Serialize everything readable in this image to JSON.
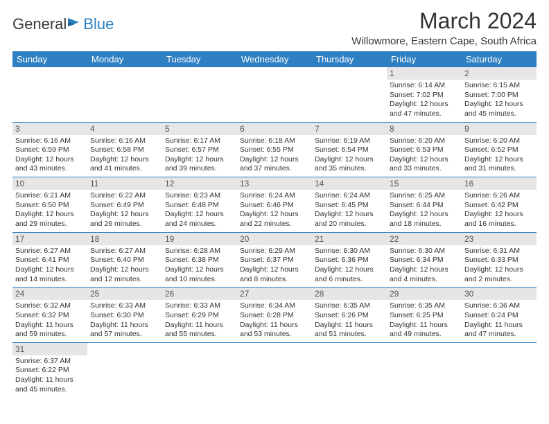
{
  "logo": {
    "text1": "General",
    "text2": "Blue"
  },
  "title": "March 2024",
  "location": "Willowmore, Eastern Cape, South Africa",
  "colors": {
    "header_bg": "#2f80c3",
    "header_fg": "#ffffff",
    "daynum_bg": "#e6e6e6",
    "rule": "#2f80c3"
  },
  "dayHeaders": [
    "Sunday",
    "Monday",
    "Tuesday",
    "Wednesday",
    "Thursday",
    "Friday",
    "Saturday"
  ],
  "weeks": [
    [
      null,
      null,
      null,
      null,
      null,
      {
        "n": "1",
        "sr": "6:14 AM",
        "ss": "7:02 PM",
        "dl": "12 hours and 47 minutes."
      },
      {
        "n": "2",
        "sr": "6:15 AM",
        "ss": "7:00 PM",
        "dl": "12 hours and 45 minutes."
      }
    ],
    [
      {
        "n": "3",
        "sr": "6:16 AM",
        "ss": "6:59 PM",
        "dl": "12 hours and 43 minutes."
      },
      {
        "n": "4",
        "sr": "6:16 AM",
        "ss": "6:58 PM",
        "dl": "12 hours and 41 minutes."
      },
      {
        "n": "5",
        "sr": "6:17 AM",
        "ss": "6:57 PM",
        "dl": "12 hours and 39 minutes."
      },
      {
        "n": "6",
        "sr": "6:18 AM",
        "ss": "6:55 PM",
        "dl": "12 hours and 37 minutes."
      },
      {
        "n": "7",
        "sr": "6:19 AM",
        "ss": "6:54 PM",
        "dl": "12 hours and 35 minutes."
      },
      {
        "n": "8",
        "sr": "6:20 AM",
        "ss": "6:53 PM",
        "dl": "12 hours and 33 minutes."
      },
      {
        "n": "9",
        "sr": "6:20 AM",
        "ss": "6:52 PM",
        "dl": "12 hours and 31 minutes."
      }
    ],
    [
      {
        "n": "10",
        "sr": "6:21 AM",
        "ss": "6:50 PM",
        "dl": "12 hours and 29 minutes."
      },
      {
        "n": "11",
        "sr": "6:22 AM",
        "ss": "6:49 PM",
        "dl": "12 hours and 26 minutes."
      },
      {
        "n": "12",
        "sr": "6:23 AM",
        "ss": "6:48 PM",
        "dl": "12 hours and 24 minutes."
      },
      {
        "n": "13",
        "sr": "6:24 AM",
        "ss": "6:46 PM",
        "dl": "12 hours and 22 minutes."
      },
      {
        "n": "14",
        "sr": "6:24 AM",
        "ss": "6:45 PM",
        "dl": "12 hours and 20 minutes."
      },
      {
        "n": "15",
        "sr": "6:25 AM",
        "ss": "6:44 PM",
        "dl": "12 hours and 18 minutes."
      },
      {
        "n": "16",
        "sr": "6:26 AM",
        "ss": "6:42 PM",
        "dl": "12 hours and 16 minutes."
      }
    ],
    [
      {
        "n": "17",
        "sr": "6:27 AM",
        "ss": "6:41 PM",
        "dl": "12 hours and 14 minutes."
      },
      {
        "n": "18",
        "sr": "6:27 AM",
        "ss": "6:40 PM",
        "dl": "12 hours and 12 minutes."
      },
      {
        "n": "19",
        "sr": "6:28 AM",
        "ss": "6:38 PM",
        "dl": "12 hours and 10 minutes."
      },
      {
        "n": "20",
        "sr": "6:29 AM",
        "ss": "6:37 PM",
        "dl": "12 hours and 8 minutes."
      },
      {
        "n": "21",
        "sr": "6:30 AM",
        "ss": "6:36 PM",
        "dl": "12 hours and 6 minutes."
      },
      {
        "n": "22",
        "sr": "6:30 AM",
        "ss": "6:34 PM",
        "dl": "12 hours and 4 minutes."
      },
      {
        "n": "23",
        "sr": "6:31 AM",
        "ss": "6:33 PM",
        "dl": "12 hours and 2 minutes."
      }
    ],
    [
      {
        "n": "24",
        "sr": "6:32 AM",
        "ss": "6:32 PM",
        "dl": "11 hours and 59 minutes."
      },
      {
        "n": "25",
        "sr": "6:33 AM",
        "ss": "6:30 PM",
        "dl": "11 hours and 57 minutes."
      },
      {
        "n": "26",
        "sr": "6:33 AM",
        "ss": "6:29 PM",
        "dl": "11 hours and 55 minutes."
      },
      {
        "n": "27",
        "sr": "6:34 AM",
        "ss": "6:28 PM",
        "dl": "11 hours and 53 minutes."
      },
      {
        "n": "28",
        "sr": "6:35 AM",
        "ss": "6:26 PM",
        "dl": "11 hours and 51 minutes."
      },
      {
        "n": "29",
        "sr": "6:35 AM",
        "ss": "6:25 PM",
        "dl": "11 hours and 49 minutes."
      },
      {
        "n": "30",
        "sr": "6:36 AM",
        "ss": "6:24 PM",
        "dl": "11 hours and 47 minutes."
      }
    ],
    [
      {
        "n": "31",
        "sr": "6:37 AM",
        "ss": "6:22 PM",
        "dl": "11 hours and 45 minutes."
      },
      null,
      null,
      null,
      null,
      null,
      null
    ]
  ],
  "labels": {
    "sunrise": "Sunrise:",
    "sunset": "Sunset:",
    "daylight": "Daylight:"
  }
}
